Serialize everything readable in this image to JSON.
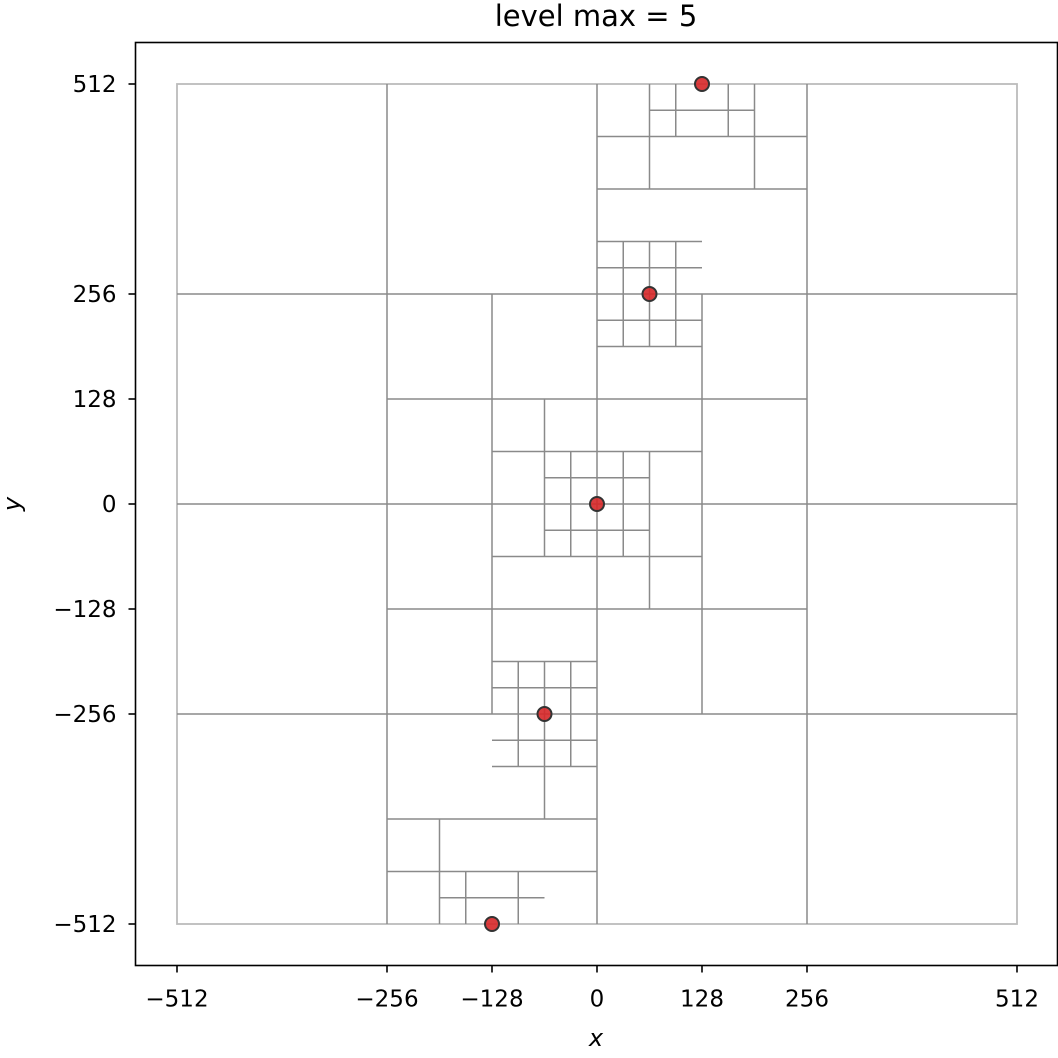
{
  "chart_data": {
    "type": "scatter",
    "title": "level max = 5",
    "xlabel": "x",
    "ylabel": "y",
    "xlim": [
      -563,
      563
    ],
    "ylim": [
      -563,
      563
    ],
    "x_ticks": [
      -512,
      -256,
      -128,
      0,
      128,
      256,
      512
    ],
    "y_ticks": [
      -512,
      -256,
      -128,
      0,
      256,
      512
    ],
    "x_tick_labels": [
      "−512",
      "−256",
      "−128",
      "0",
      "128",
      "256",
      "512"
    ],
    "y_tick_labels": [
      "−512",
      "−256",
      "−128",
      "0",
      "256",
      "512"
    ],
    "y_tick_128": "128",
    "grid": false,
    "bounding_box": {
      "xmin": -512,
      "xmax": 512,
      "ymin": -512,
      "ymax": 512,
      "color": "#bbbbbb"
    },
    "points": [
      {
        "x": 128,
        "y": 512
      },
      {
        "x": 64,
        "y": 256
      },
      {
        "x": 0,
        "y": 0
      },
      {
        "x": -64,
        "y": -256
      },
      {
        "x": -128,
        "y": -512
      }
    ],
    "point_color": "#d62728",
    "point_edge_color": "#333333",
    "quadtree_line_color": "#8a8a8a",
    "quadtree_segments": [
      [
        -512,
        256,
        512,
        256
      ],
      [
        -512,
        0,
        512,
        0
      ],
      [
        -512,
        -256,
        512,
        -256
      ],
      [
        -256,
        -512,
        -256,
        512
      ],
      [
        0,
        -512,
        0,
        512
      ],
      [
        256,
        -512,
        256,
        512
      ],
      [
        -256,
        128,
        256,
        128
      ],
      [
        -256,
        -128,
        256,
        -128
      ],
      [
        -128,
        -256,
        -128,
        256
      ],
      [
        128,
        -256,
        128,
        256
      ],
      [
        0,
        448,
        256,
        448
      ],
      [
        0,
        384,
        256,
        384
      ],
      [
        64,
        384,
        64,
        512
      ],
      [
        192,
        384,
        192,
        512
      ],
      [
        64,
        480,
        192,
        480
      ],
      [
        96,
        448,
        96,
        512
      ],
      [
        160,
        448,
        160,
        512
      ],
      [
        0,
        320,
        128,
        320
      ],
      [
        64,
        192,
        64,
        320
      ],
      [
        0,
        192,
        128,
        192
      ],
      [
        0,
        288,
        128,
        288
      ],
      [
        0,
        224,
        128,
        224
      ],
      [
        32,
        192,
        32,
        320
      ],
      [
        96,
        192,
        96,
        320
      ],
      [
        -128,
        64,
        128,
        64
      ],
      [
        -128,
        -64,
        128,
        -64
      ],
      [
        -64,
        -64,
        -64,
        128
      ],
      [
        64,
        -128,
        64,
        64
      ],
      [
        -64,
        32,
        64,
        32
      ],
      [
        -64,
        -32,
        64,
        -32
      ],
      [
        -32,
        -64,
        -32,
        64
      ],
      [
        32,
        -64,
        32,
        64
      ],
      [
        -128,
        -192,
        0,
        -192
      ],
      [
        -128,
        -320,
        0,
        -320
      ],
      [
        -64,
        -384,
        -64,
        -192
      ],
      [
        -128,
        -224,
        0,
        -224
      ],
      [
        -128,
        -288,
        0,
        -288
      ],
      [
        -96,
        -320,
        -96,
        -192
      ],
      [
        -32,
        -320,
        -32,
        -192
      ],
      [
        -256,
        -384,
        0,
        -384
      ],
      [
        -256,
        -448,
        0,
        -448
      ],
      [
        -192,
        -512,
        -192,
        -384
      ],
      [
        -192,
        -480,
        -64,
        -480
      ],
      [
        -160,
        -512,
        -160,
        -448
      ],
      [
        -96,
        -512,
        -96,
        -448
      ]
    ]
  }
}
